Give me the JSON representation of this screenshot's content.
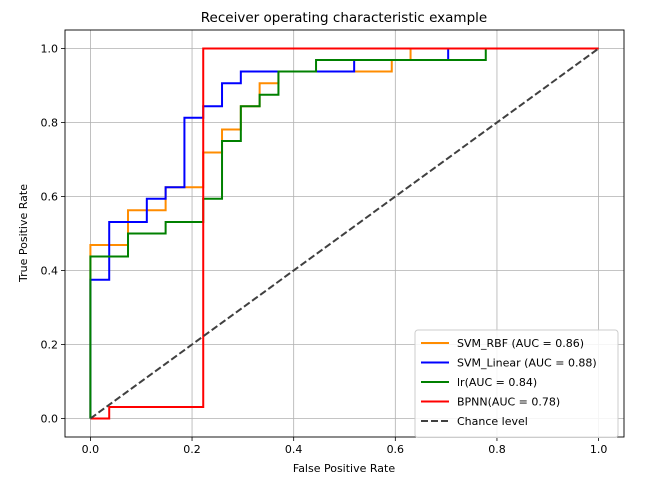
{
  "chart_data": {
    "type": "line",
    "title": "Receiver operating characteristic example",
    "xlabel": "False Positive Rate",
    "ylabel": "True Positive Rate",
    "xlim": [
      -0.05,
      1.05
    ],
    "ylim": [
      -0.05,
      1.05
    ],
    "grid": true,
    "legend_position": "bottom-right",
    "x_ticks": [
      0.0,
      0.2,
      0.4,
      0.6,
      0.8,
      1.0
    ],
    "x_tick_labels": [
      "0.0",
      "0.2",
      "0.4",
      "0.6",
      "0.8",
      "1.0"
    ],
    "y_ticks": [
      0.0,
      0.2,
      0.4,
      0.6,
      0.8,
      1.0
    ],
    "y_tick_labels": [
      "0.0",
      "0.2",
      "0.4",
      "0.6",
      "0.8",
      "1.0"
    ],
    "series": [
      {
        "name": "SVM_RBF (AUC = 0.86)",
        "color": "#ff8c00",
        "dashed": false,
        "points": [
          [
            0,
            0
          ],
          [
            0,
            0.469
          ],
          [
            0.074,
            0.469
          ],
          [
            0.074,
            0.563
          ],
          [
            0.148,
            0.563
          ],
          [
            0.148,
            0.625
          ],
          [
            0.222,
            0.625
          ],
          [
            0.222,
            0.719
          ],
          [
            0.259,
            0.719
          ],
          [
            0.259,
            0.781
          ],
          [
            0.296,
            0.781
          ],
          [
            0.296,
            0.844
          ],
          [
            0.333,
            0.844
          ],
          [
            0.333,
            0.906
          ],
          [
            0.37,
            0.906
          ],
          [
            0.37,
            0.938
          ],
          [
            0.593,
            0.938
          ],
          [
            0.593,
            0.969
          ],
          [
            0.63,
            0.969
          ],
          [
            0.63,
            1.0
          ],
          [
            1.0,
            1.0
          ]
        ]
      },
      {
        "name": "SVM_Linear (AUC = 0.88)",
        "color": "#0000ff",
        "dashed": false,
        "points": [
          [
            0,
            0
          ],
          [
            0,
            0.375
          ],
          [
            0.037,
            0.375
          ],
          [
            0.037,
            0.531
          ],
          [
            0.111,
            0.531
          ],
          [
            0.111,
            0.594
          ],
          [
            0.148,
            0.594
          ],
          [
            0.148,
            0.625
          ],
          [
            0.185,
            0.625
          ],
          [
            0.185,
            0.813
          ],
          [
            0.222,
            0.813
          ],
          [
            0.222,
            0.844
          ],
          [
            0.259,
            0.844
          ],
          [
            0.259,
            0.906
          ],
          [
            0.296,
            0.906
          ],
          [
            0.296,
            0.938
          ],
          [
            0.519,
            0.938
          ],
          [
            0.519,
            0.969
          ],
          [
            0.704,
            0.969
          ],
          [
            0.704,
            1.0
          ],
          [
            1.0,
            1.0
          ]
        ]
      },
      {
        "name": "lr(AUC = 0.84)",
        "color": "#008000",
        "dashed": false,
        "points": [
          [
            0,
            0
          ],
          [
            0,
            0.438
          ],
          [
            0.074,
            0.438
          ],
          [
            0.074,
            0.5
          ],
          [
            0.148,
            0.5
          ],
          [
            0.148,
            0.531
          ],
          [
            0.222,
            0.531
          ],
          [
            0.222,
            0.594
          ],
          [
            0.259,
            0.594
          ],
          [
            0.259,
            0.75
          ],
          [
            0.296,
            0.75
          ],
          [
            0.296,
            0.844
          ],
          [
            0.333,
            0.844
          ],
          [
            0.333,
            0.875
          ],
          [
            0.37,
            0.875
          ],
          [
            0.37,
            0.938
          ],
          [
            0.444,
            0.938
          ],
          [
            0.444,
            0.969
          ],
          [
            0.778,
            0.969
          ],
          [
            0.778,
            1.0
          ],
          [
            1.0,
            1.0
          ]
        ]
      },
      {
        "name": "BPNN(AUC = 0.78)",
        "color": "#ff0000",
        "dashed": false,
        "points": [
          [
            0,
            0
          ],
          [
            0.037,
            0
          ],
          [
            0.037,
            0.031
          ],
          [
            0.222,
            0.031
          ],
          [
            0.222,
            1.0
          ],
          [
            1.0,
            1.0
          ]
        ]
      },
      {
        "name": "Chance level",
        "color": "#404040",
        "dashed": true,
        "points": [
          [
            0,
            0
          ],
          [
            1.0,
            1.0
          ]
        ]
      }
    ]
  }
}
